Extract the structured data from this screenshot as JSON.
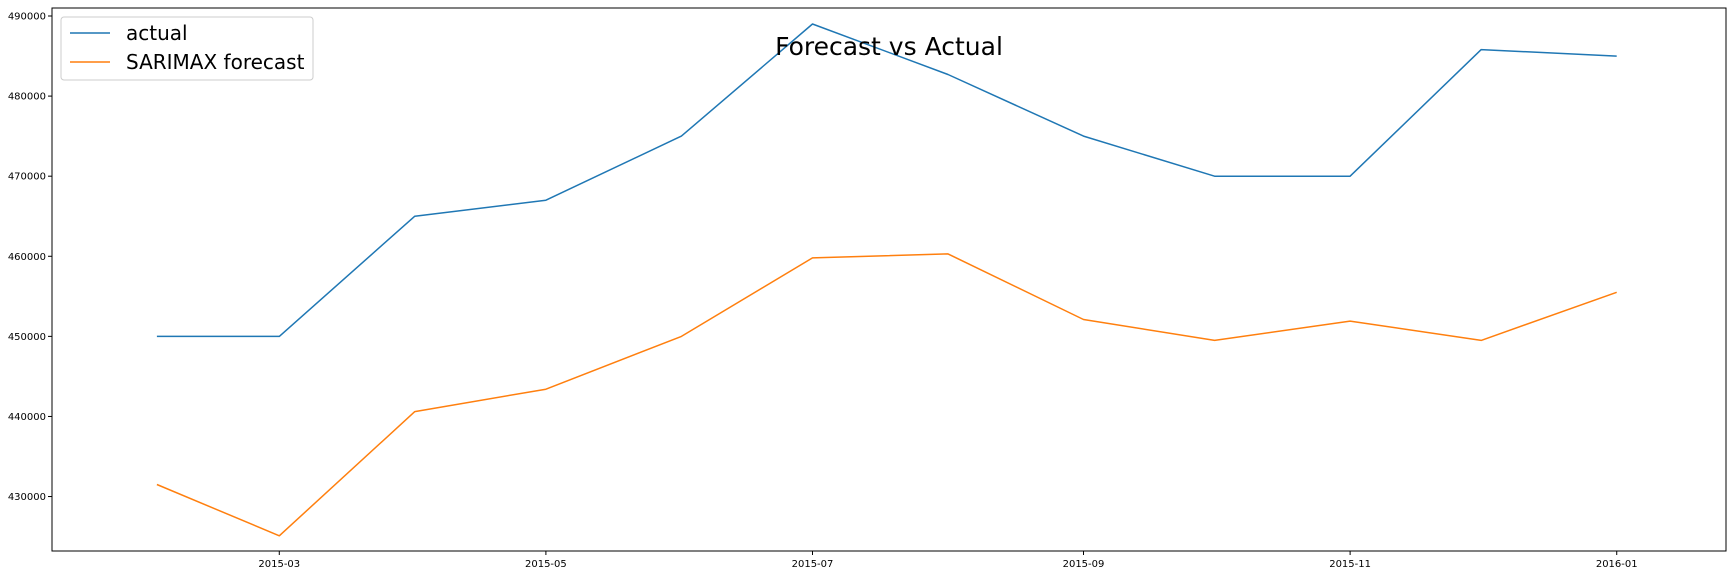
{
  "chart_data": {
    "type": "line",
    "title": "Forecast vs Actual",
    "xlabel": "",
    "ylabel": "",
    "x": [
      "2015-02-01",
      "2015-03-01",
      "2015-04-01",
      "2015-05-01",
      "2015-06-01",
      "2015-07-01",
      "2015-08-01",
      "2015-09-01",
      "2015-10-01",
      "2015-11-01",
      "2015-12-01",
      "2016-01-01"
    ],
    "series": [
      {
        "name": "actual",
        "color": "#1f77b4",
        "values": [
          450000,
          450000,
          465000,
          467000,
          475000,
          489000,
          482700,
          475000,
          470000,
          470000,
          485800,
          485000
        ]
      },
      {
        "name": "SARIMAX forecast",
        "color": "#ff7f0e",
        "values": [
          431500,
          425100,
          440600,
          443400,
          450000,
          459800,
          460300,
          452100,
          449500,
          451900,
          449500,
          455500
        ]
      }
    ],
    "xticks": [
      {
        "label": "2015-03",
        "date": "2015-03-01"
      },
      {
        "label": "2015-05",
        "date": "2015-05-01"
      },
      {
        "label": "2015-07",
        "date": "2015-07-01"
      },
      {
        "label": "2015-09",
        "date": "2015-09-01"
      },
      {
        "label": "2015-11",
        "date": "2015-11-01"
      },
      {
        "label": "2016-01",
        "date": "2016-01-01"
      }
    ],
    "yticks": [
      "430000",
      "440000",
      "450000",
      "460000",
      "470000",
      "480000",
      "490000"
    ],
    "xlim": [
      "2015-01-08",
      "2016-01-26"
    ],
    "ylim": [
      423200,
      491000
    ],
    "grid": false,
    "legend_position": "top-left"
  }
}
